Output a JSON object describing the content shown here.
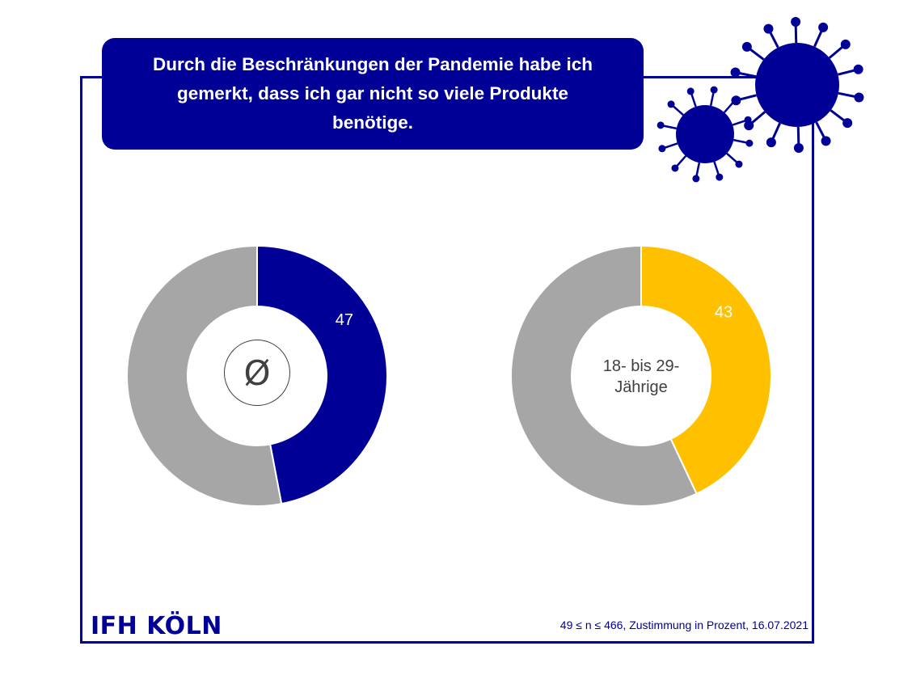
{
  "title": "Durch die Beschränkungen der Pandemie habe ich gemerkt, dass ich gar nicht so viele Produkte benötige.",
  "colors": {
    "brand": "#000096",
    "accent": "#FFC000",
    "rest": "#A6A6A6",
    "text": "#404040"
  },
  "chart_data": [
    {
      "type": "pie",
      "center_label": "Ø",
      "slices": [
        {
          "value": 47,
          "color": "#000096",
          "label": "47",
          "label_color": "#ffffff"
        },
        {
          "value": 53,
          "color": "#A6A6A6",
          "label": ""
        }
      ]
    },
    {
      "type": "pie",
      "center_label": "18- bis 29-Jährige",
      "center_lines": [
        "18- bis 29-",
        "Jährige"
      ],
      "slices": [
        {
          "value": 43,
          "color": "#FFC000",
          "label": "43",
          "label_color": "#ffffff"
        },
        {
          "value": 57,
          "color": "#A6A6A6",
          "label": ""
        }
      ]
    }
  ],
  "footer": {
    "logo": "IFH KÖLN",
    "note": "49 ≤ n ≤ 466, Zustimmung in Prozent, 16.07.2021"
  }
}
